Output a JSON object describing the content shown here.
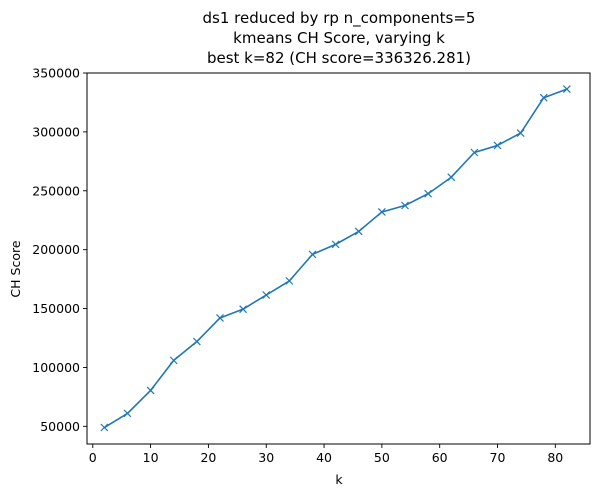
{
  "chart_data": {
    "type": "line",
    "title_lines": [
      "ds1 reduced by rp n_components=5",
      "kmeans CH Score, varying k",
      "best k=82 (CH score=336326.281)"
    ],
    "xlabel": "k",
    "ylabel": "CH Score",
    "xlim": [
      -1,
      86
    ],
    "ylim": [
      35000,
      350000
    ],
    "x_ticks": [
      0,
      10,
      20,
      30,
      40,
      50,
      60,
      70,
      80
    ],
    "y_ticks": [
      50000,
      100000,
      150000,
      200000,
      250000,
      300000,
      350000
    ],
    "grid": false,
    "marker": "x",
    "color": "#1f77b4",
    "series": [
      {
        "x": [
          2,
          6,
          10,
          14,
          18,
          22,
          26,
          30,
          34,
          38,
          42,
          46,
          50,
          54,
          58,
          62,
          66,
          70,
          74,
          78,
          82
        ],
        "values": [
          49000,
          61000,
          80500,
          106000,
          122000,
          142000,
          149500,
          161500,
          173500,
          196000,
          204500,
          215500,
          232000,
          237500,
          247500,
          261500,
          282500,
          288500,
          299000,
          329000,
          336326.281
        ]
      }
    ]
  }
}
